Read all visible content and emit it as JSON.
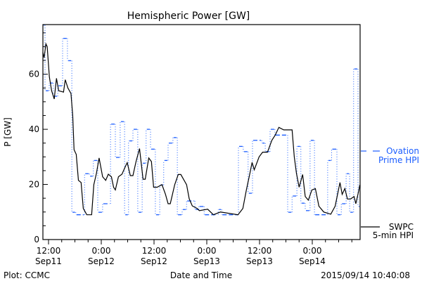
{
  "chart_data": {
    "type": "line",
    "title": "Hemispheric Power [GW]",
    "xlabel": "Date and Time",
    "ylabel": "P [GW]",
    "x_units": "hours since 2015-09-11 00:00 UT",
    "xlim": [
      10.72,
      82.88
    ],
    "ylim": [
      0,
      78
    ],
    "yticks": [
      0,
      20,
      40,
      60
    ],
    "yminor_step": 5,
    "xticks": [
      {
        "t": 12,
        "line1": "12:00",
        "line2": "Sep11"
      },
      {
        "t": 24,
        "line1": "0:00",
        "line2": "Sep12"
      },
      {
        "t": 36,
        "line1": "12:00",
        "line2": "Sep12"
      },
      {
        "t": 48,
        "line1": "0:00",
        "line2": "Sep13"
      },
      {
        "t": 60,
        "line1": "12:00",
        "line2": "Sep13"
      },
      {
        "t": 72,
        "line1": "0:00",
        "line2": "Sep14"
      }
    ],
    "xminor_step": 3,
    "series": [
      {
        "name": "SWPC 5-min HPI",
        "legend_line1": "SWPC",
        "legend_line2": "5-min HPI",
        "color": "#000000",
        "style": "solid",
        "points": [
          [
            10.7,
            68
          ],
          [
            11.0,
            66
          ],
          [
            11.4,
            71
          ],
          [
            11.7,
            70
          ],
          [
            12.2,
            59
          ],
          [
            12.7,
            54
          ],
          [
            13.3,
            51
          ],
          [
            13.8,
            58.5
          ],
          [
            14.3,
            54
          ],
          [
            15.4,
            53.5
          ],
          [
            15.8,
            58
          ],
          [
            16.4,
            55
          ],
          [
            17.1,
            53
          ],
          [
            17.5,
            45
          ],
          [
            17.8,
            32.6
          ],
          [
            18.3,
            30.9
          ],
          [
            18.8,
            21.5
          ],
          [
            19.4,
            20.7
          ],
          [
            19.9,
            11.3
          ],
          [
            20.7,
            9
          ],
          [
            21.8,
            9
          ],
          [
            22.3,
            19.9
          ],
          [
            22.9,
            24
          ],
          [
            23.5,
            29.6
          ],
          [
            24.3,
            22.8
          ],
          [
            25.0,
            21.5
          ],
          [
            25.6,
            23.7
          ],
          [
            26.3,
            22.8
          ],
          [
            26.8,
            19
          ],
          [
            27.2,
            18
          ],
          [
            27.9,
            22.8
          ],
          [
            28.7,
            23.7
          ],
          [
            29.5,
            26.6
          ],
          [
            29.9,
            27.9
          ],
          [
            30.6,
            23.2
          ],
          [
            31.2,
            23.2
          ],
          [
            31.9,
            28.3
          ],
          [
            32.7,
            33
          ],
          [
            33.5,
            21.9
          ],
          [
            34.0,
            21.9
          ],
          [
            34.8,
            29.6
          ],
          [
            35.4,
            28.3
          ],
          [
            35.9,
            19
          ],
          [
            36.7,
            19
          ],
          [
            37.8,
            19.9
          ],
          [
            38.6,
            16.4
          ],
          [
            39.2,
            13
          ],
          [
            39.7,
            13
          ],
          [
            40.7,
            19.9
          ],
          [
            41.5,
            23.6
          ],
          [
            42.1,
            23.6
          ],
          [
            43.4,
            19.9
          ],
          [
            44.0,
            14.8
          ],
          [
            44.7,
            12.2
          ],
          [
            45.8,
            11.3
          ],
          [
            46.3,
            10.5
          ],
          [
            48.2,
            11
          ],
          [
            49.5,
            9
          ],
          [
            51.1,
            10
          ],
          [
            55.1,
            9
          ],
          [
            56.2,
            11.3
          ],
          [
            57.0,
            18
          ],
          [
            57.8,
            24
          ],
          [
            58.3,
            28
          ],
          [
            58.8,
            25.3
          ],
          [
            59.9,
            30
          ],
          [
            60.7,
            31.7
          ],
          [
            61.8,
            31.7
          ],
          [
            62.8,
            36
          ],
          [
            63.6,
            38
          ],
          [
            64.4,
            40.7
          ],
          [
            65.5,
            39.8
          ],
          [
            67.4,
            39.8
          ],
          [
            67.9,
            30
          ],
          [
            68.4,
            24
          ],
          [
            69.0,
            19
          ],
          [
            69.8,
            23.6
          ],
          [
            70.4,
            15.6
          ],
          [
            71.1,
            14.3
          ],
          [
            71.9,
            18
          ],
          [
            72.7,
            18.5
          ],
          [
            73.5,
            12.1
          ],
          [
            74.6,
            10
          ],
          [
            76.2,
            9.2
          ],
          [
            77.2,
            12.1
          ],
          [
            78.3,
            20.7
          ],
          [
            78.8,
            16.4
          ],
          [
            79.4,
            18.5
          ],
          [
            80.0,
            14.7
          ],
          [
            80.7,
            14.7
          ],
          [
            81.5,
            15.6
          ],
          [
            81.9,
            13
          ],
          [
            82.6,
            18
          ],
          [
            82.8,
            19.8
          ]
        ]
      },
      {
        "name": "Ovation Prime HPI",
        "legend_line1": "Ovation",
        "legend_line2": "Prime HPI",
        "color": "#1a5cff",
        "style": "step-dashed",
        "steps": [
          [
            10.72,
            77.8
          ],
          [
            11.2,
            54
          ],
          [
            12.16,
            56.8
          ],
          [
            13.1,
            52
          ],
          [
            14.1,
            55.8
          ],
          [
            15.2,
            73
          ],
          [
            16.3,
            64.9
          ],
          [
            17.3,
            9.9
          ],
          [
            18.2,
            9
          ],
          [
            20.2,
            23.9
          ],
          [
            21.3,
            23
          ],
          [
            22.2,
            28.7
          ],
          [
            23.2,
            9.9
          ],
          [
            24.3,
            13
          ],
          [
            26.1,
            41.9
          ],
          [
            27.2,
            29.8
          ],
          [
            28.3,
            42.8
          ],
          [
            29.3,
            9
          ],
          [
            30.2,
            35.8
          ],
          [
            31.2,
            40
          ],
          [
            32.3,
            9.9
          ],
          [
            33.3,
            27.7
          ],
          [
            34.2,
            40
          ],
          [
            35.2,
            32.8
          ],
          [
            36.3,
            9
          ],
          [
            37.3,
            19.8
          ],
          [
            38.2,
            28.7
          ],
          [
            39.2,
            35
          ],
          [
            40.3,
            37
          ],
          [
            41.3,
            9
          ],
          [
            42.4,
            10.9
          ],
          [
            43.4,
            14
          ],
          [
            45.3,
            10.9
          ],
          [
            46.2,
            12
          ],
          [
            47.4,
            9
          ],
          [
            50.6,
            10.9
          ],
          [
            51.4,
            9
          ],
          [
            55.2,
            33.8
          ],
          [
            56.3,
            31.9
          ],
          [
            57.4,
            16.8
          ],
          [
            58.4,
            36
          ],
          [
            60.5,
            35
          ],
          [
            61.3,
            31.9
          ],
          [
            62.4,
            40
          ],
          [
            63.5,
            37.9
          ],
          [
            66.4,
            9.9
          ],
          [
            67.4,
            15.8
          ],
          [
            68.5,
            33.8
          ],
          [
            69.4,
            13.2
          ],
          [
            70.4,
            10.5
          ],
          [
            71.5,
            36
          ],
          [
            72.5,
            9
          ],
          [
            75.5,
            28.7
          ],
          [
            76.4,
            32.8
          ],
          [
            77.6,
            9
          ],
          [
            78.6,
            13
          ],
          [
            79.7,
            23.9
          ],
          [
            80.5,
            9.9
          ],
          [
            81.4,
            61.9
          ],
          [
            82.4,
            12
          ]
        ]
      }
    ]
  },
  "footer": {
    "left": "Plot: CCMC",
    "right": "2015/09/14 10:40:08"
  }
}
